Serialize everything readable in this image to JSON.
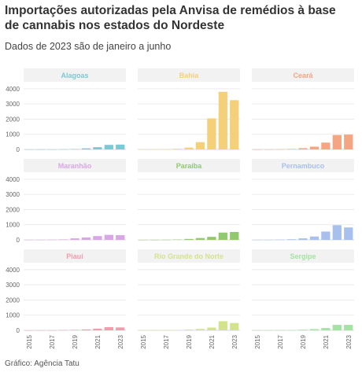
{
  "header": {
    "title": "Importações autorizadas pela Anvisa de remédios à base de cannabis nos estados do Nordeste",
    "subtitle": "Dados de 2023 são de janeiro a junho"
  },
  "footer": {
    "source": "Gráfico: Agência Tatu"
  },
  "chart_data": {
    "type": "bar",
    "facet_layout": {
      "rows": 3,
      "cols": 3
    },
    "x": [
      2015,
      2016,
      2017,
      2018,
      2019,
      2020,
      2021,
      2022,
      2023
    ],
    "x_ticks": [
      "2015",
      "2017",
      "2019",
      "2021",
      "2023"
    ],
    "y_ticks": [
      0,
      1000,
      2000,
      3000,
      4000
    ],
    "ylim": [
      0,
      4200
    ],
    "grid": true,
    "title": "Importações autorizadas pela Anvisa de remédios à base de cannabis nos estados do Nordeste",
    "xlabel": "",
    "ylabel": "",
    "series": [
      {
        "name": "Alagoas",
        "color": "#7ec8d3",
        "values": [
          0,
          2,
          5,
          10,
          25,
          70,
          150,
          300,
          320
        ]
      },
      {
        "name": "Bahia",
        "color": "#f5d07a",
        "values": [
          3,
          8,
          15,
          40,
          120,
          480,
          2050,
          3800,
          3250
        ]
      },
      {
        "name": "Ceará",
        "color": "#f4a582",
        "values": [
          2,
          5,
          12,
          30,
          80,
          180,
          450,
          950,
          980
        ]
      },
      {
        "name": "Maranhão",
        "color": "#d9a6e6",
        "values": [
          2,
          5,
          10,
          30,
          100,
          160,
          250,
          330,
          310
        ]
      },
      {
        "name": "Paraíba",
        "color": "#90c96e",
        "values": [
          2,
          4,
          8,
          20,
          60,
          120,
          200,
          480,
          520
        ]
      },
      {
        "name": "Pernambuco",
        "color": "#a8c0ee",
        "values": [
          3,
          6,
          15,
          40,
          100,
          220,
          550,
          970,
          820
        ]
      },
      {
        "name": "Piauí",
        "color": "#f29cae",
        "values": [
          1,
          3,
          6,
          15,
          30,
          60,
          110,
          210,
          190
        ]
      },
      {
        "name": "Rio Grande do Norte",
        "color": "#d3e38c",
        "values": [
          2,
          4,
          8,
          20,
          50,
          90,
          180,
          600,
          480
        ]
      },
      {
        "name": "Sergipe",
        "color": "#a3e3a3",
        "values": [
          1,
          3,
          6,
          15,
          40,
          80,
          150,
          360,
          360
        ]
      }
    ]
  }
}
